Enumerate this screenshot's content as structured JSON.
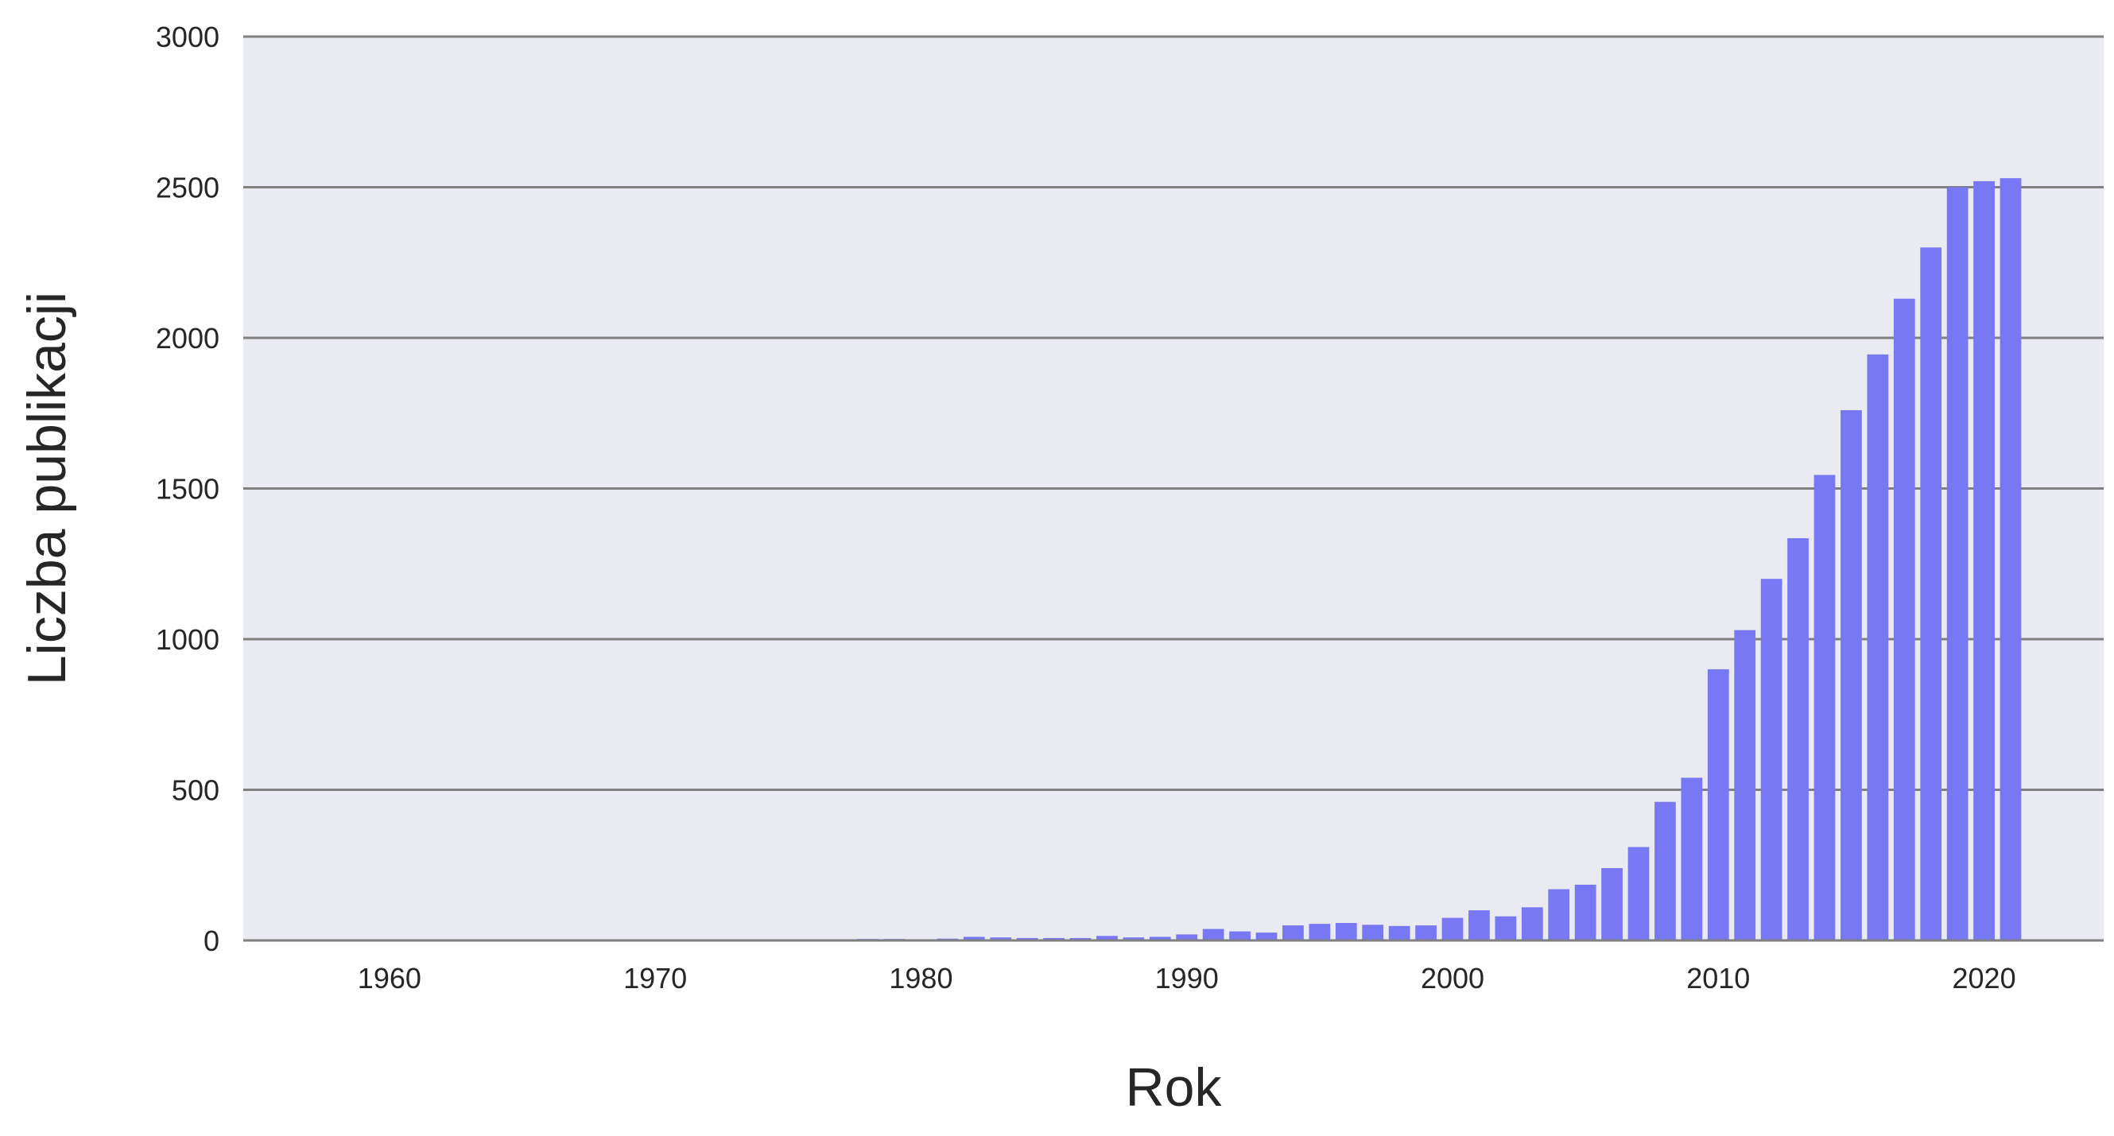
{
  "chart_data": {
    "type": "bar",
    "title": "",
    "xlabel": "Rok",
    "ylabel": "Liczba publikacji",
    "xlim": [
      1954.5,
      2024.5
    ],
    "ylim": [
      0,
      3000
    ],
    "x_ticks": [
      1960,
      1970,
      1980,
      1990,
      2000,
      2010,
      2020
    ],
    "y_ticks": [
      0,
      500,
      1000,
      1500,
      2000,
      2500,
      3000
    ],
    "grid": "horizontal",
    "legend": "none",
    "colors": {
      "bar": "#7878f5",
      "background": "#eaeaf2",
      "grid": "#808080",
      "text": "#262626"
    },
    "x": [
      1958,
      1959,
      1960,
      1961,
      1962,
      1963,
      1964,
      1965,
      1966,
      1967,
      1968,
      1969,
      1970,
      1971,
      1972,
      1973,
      1974,
      1975,
      1976,
      1977,
      1978,
      1979,
      1980,
      1981,
      1982,
      1983,
      1984,
      1985,
      1986,
      1987,
      1988,
      1989,
      1990,
      1991,
      1992,
      1993,
      1994,
      1995,
      1996,
      1997,
      1998,
      1999,
      2000,
      2001,
      2002,
      2003,
      2004,
      2005,
      2006,
      2007,
      2008,
      2009,
      2010,
      2011,
      2012,
      2013,
      2014,
      2015,
      2016,
      2017,
      2018,
      2019,
      2020,
      2021
    ],
    "values": [
      1,
      0,
      0,
      0,
      1,
      1,
      0,
      0,
      2,
      0,
      1,
      1,
      1,
      1,
      1,
      2,
      2,
      4,
      4,
      3,
      5,
      5,
      4,
      6,
      12,
      10,
      8,
      8,
      8,
      15,
      10,
      12,
      20,
      38,
      30,
      26,
      50,
      55,
      58,
      52,
      48,
      50,
      75,
      100,
      80,
      110,
      170,
      185,
      240,
      310,
      460,
      540,
      900,
      1030,
      1200,
      1335,
      1545,
      1760,
      1945,
      2130,
      2300,
      2500,
      2520,
      2530
    ]
  }
}
